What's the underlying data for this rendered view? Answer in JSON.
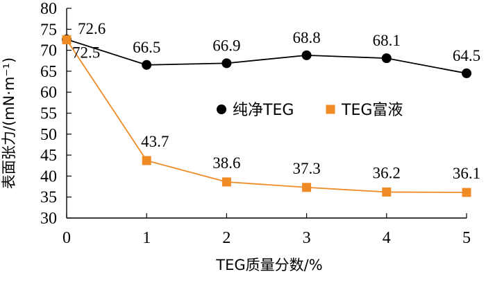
{
  "chart_data": {
    "type": "line",
    "title": "",
    "xlabel": "TEG质量分数/%",
    "ylabel": "表面张力/(mN·m⁻¹)",
    "x": [
      0,
      1,
      2,
      3,
      4,
      5
    ],
    "xlim": [
      0,
      5
    ],
    "ylim": [
      30,
      80
    ],
    "yticks": [
      30,
      35,
      40,
      45,
      50,
      55,
      60,
      65,
      70,
      75,
      80
    ],
    "xticks": [
      0,
      1,
      2,
      3,
      4,
      5
    ],
    "grid": false,
    "legend_position": "center-right",
    "series": [
      {
        "name": "纯净TEG",
        "marker": "circle",
        "color": "#000000",
        "values": [
          72.6,
          66.5,
          66.9,
          68.8,
          68.1,
          64.5
        ],
        "labels": [
          "72.6",
          "66.5",
          "66.9",
          "68.8",
          "68.1",
          "64.5"
        ]
      },
      {
        "name": "TEG富液",
        "marker": "square",
        "color": "#f08a24",
        "values": [
          72.5,
          43.7,
          38.6,
          37.3,
          36.2,
          36.1
        ],
        "labels": [
          "72.5",
          "43.7",
          "38.6",
          "37.3",
          "36.2",
          "36.1"
        ]
      }
    ]
  }
}
